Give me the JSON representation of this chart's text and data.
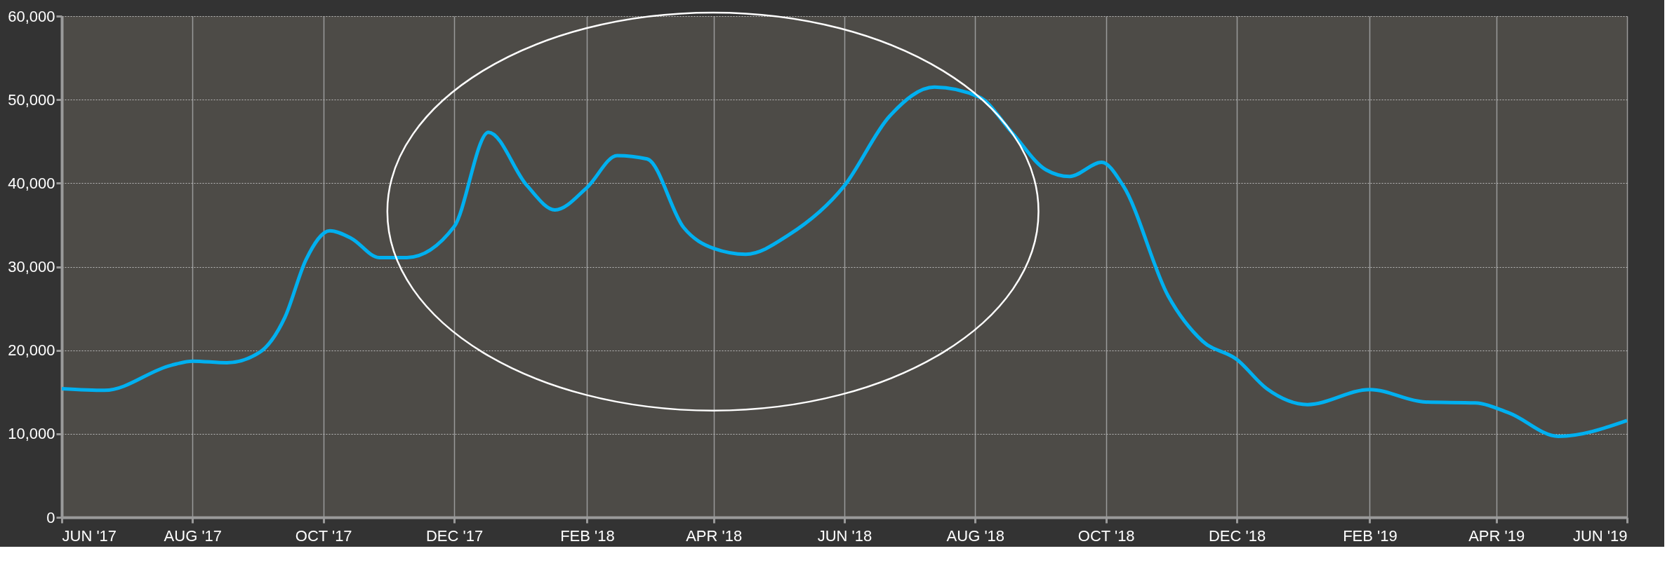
{
  "chart_data": {
    "type": "line",
    "x": [
      "2017-06-01",
      "2017-06-21",
      "2017-07-22",
      "2017-08-01",
      "2017-08-17",
      "2017-09-01",
      "2017-09-13",
      "2017-09-23",
      "2017-10-04",
      "2017-10-14",
      "2017-10-27",
      "2017-11-09",
      "2017-12-01",
      "2017-12-17",
      "2018-01-04",
      "2018-01-17",
      "2018-02-01",
      "2018-02-15",
      "2018-03-01",
      "2018-03-18",
      "2018-04-01",
      "2018-04-16",
      "2018-05-06",
      "2018-06-01",
      "2018-06-22",
      "2018-07-13",
      "2018-08-03",
      "2018-08-18",
      "2018-09-03",
      "2018-09-14",
      "2018-09-29",
      "2018-10-09",
      "2018-10-30",
      "2018-11-15",
      "2018-12-01",
      "2018-12-15",
      "2019-01-03",
      "2019-02-01",
      "2019-02-27",
      "2019-03-22",
      "2019-04-07",
      "2019-04-30",
      "2019-06-01"
    ],
    "series": [
      {
        "color": "#00b0f0",
        "values": [
          15400,
          15200,
          18200,
          18700,
          18500,
          19700,
          23900,
          30900,
          34300,
          33400,
          31100,
          31100,
          34800,
          46100,
          39700,
          36800,
          39500,
          43300,
          42900,
          34700,
          32200,
          31500,
          33800,
          39700,
          48000,
          51500,
          50300,
          46100,
          41600,
          40800,
          42500,
          39700,
          26500,
          21100,
          18900,
          15400,
          13500,
          15300,
          13800,
          13700,
          12500,
          9700,
          11600
        ]
      }
    ],
    "xlim": [
      "2017-06-01",
      "2019-06-01"
    ],
    "xticks": [
      {
        "value": "2017-06-01",
        "label": "JUN '17"
      },
      {
        "value": "2017-08-01",
        "label": "AUG '17"
      },
      {
        "value": "2017-10-01",
        "label": "OCT '17"
      },
      {
        "value": "2017-12-01",
        "label": "DEC '17"
      },
      {
        "value": "2018-02-01",
        "label": "FEB '18"
      },
      {
        "value": "2018-04-01",
        "label": "APR '18"
      },
      {
        "value": "2018-06-01",
        "label": "JUN '18"
      },
      {
        "value": "2018-08-01",
        "label": "AUG '18"
      },
      {
        "value": "2018-10-01",
        "label": "OCT '18"
      },
      {
        "value": "2018-12-01",
        "label": "DEC '18"
      },
      {
        "value": "2019-02-01",
        "label": "FEB '19"
      },
      {
        "value": "2019-04-01",
        "label": "APR '19"
      },
      {
        "value": "2019-06-01",
        "label": "JUN '19"
      }
    ],
    "ylim": [
      0,
      60000
    ],
    "yticks": [
      0,
      {
        "value": 10000,
        "label": "10,000"
      },
      {
        "value": 20000,
        "label": "20,000"
      },
      {
        "value": 30000,
        "label": "30,000"
      },
      {
        "value": 40000,
        "label": "40,000"
      },
      {
        "value": 50000,
        "label": "50,000"
      },
      {
        "value": 60000,
        "label": "60,000"
      }
    ],
    "grid": true,
    "marker": "none",
    "line_style": "solid"
  }
}
